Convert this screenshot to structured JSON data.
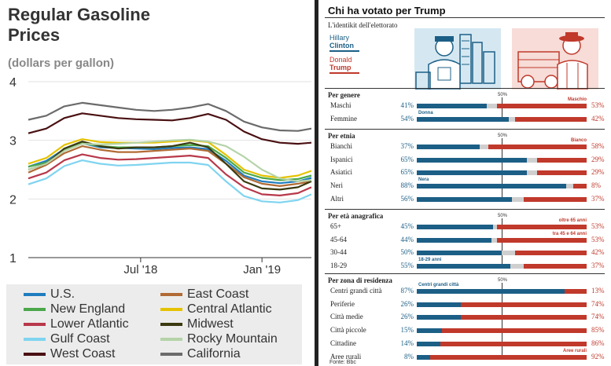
{
  "chart_data": [
    {
      "type": "line",
      "title": "Regular Gasoline Prices",
      "subtitle": "(dollars per gallon)",
      "ylim": [
        1,
        4
      ],
      "yticks": [
        "1",
        "2",
        "3",
        "4"
      ],
      "xticks": [
        "Jul '18",
        "Jan '19"
      ],
      "xticks_at": [
        25,
        52
      ],
      "x_range": [
        0,
        63
      ],
      "x": [
        0,
        4,
        8,
        12,
        16,
        20,
        24,
        28,
        32,
        36,
        40,
        44,
        48,
        52,
        56,
        60,
        63
      ],
      "series": [
        {
          "name": "U.S.",
          "color": "#1f7dbf",
          "values": [
            2.55,
            2.65,
            2.85,
            2.95,
            2.88,
            2.87,
            2.86,
            2.85,
            2.87,
            2.88,
            2.85,
            2.65,
            2.4,
            2.3,
            2.27,
            2.3,
            2.36
          ]
        },
        {
          "name": "East Coast",
          "color": "#b26b34",
          "values": [
            2.45,
            2.58,
            2.78,
            2.9,
            2.84,
            2.8,
            2.8,
            2.82,
            2.84,
            2.86,
            2.82,
            2.6,
            2.37,
            2.26,
            2.22,
            2.26,
            2.3
          ]
        },
        {
          "name": "New England",
          "color": "#4aa84a",
          "values": [
            2.55,
            2.62,
            2.84,
            2.95,
            2.9,
            2.88,
            2.88,
            2.88,
            2.9,
            2.92,
            2.9,
            2.7,
            2.45,
            2.36,
            2.32,
            2.34,
            2.4
          ]
        },
        {
          "name": "Central Atlantic",
          "color": "#e5c200",
          "values": [
            2.6,
            2.7,
            2.92,
            3.02,
            2.97,
            2.96,
            2.96,
            2.96,
            2.98,
            3.0,
            2.97,
            2.75,
            2.5,
            2.4,
            2.36,
            2.4,
            2.48
          ]
        },
        {
          "name": "Lower Atlantic",
          "color": "#b8384a",
          "values": [
            2.35,
            2.45,
            2.66,
            2.76,
            2.7,
            2.67,
            2.68,
            2.7,
            2.72,
            2.74,
            2.7,
            2.42,
            2.2,
            2.08,
            2.06,
            2.1,
            2.2
          ]
        },
        {
          "name": "Midwest",
          "color": "#3b3a10",
          "values": [
            2.5,
            2.6,
            2.86,
            2.98,
            2.9,
            2.86,
            2.88,
            2.88,
            2.9,
            2.96,
            2.88,
            2.6,
            2.3,
            2.18,
            2.16,
            2.2,
            2.3
          ]
        },
        {
          "name": "Gulf Coast",
          "color": "#7fd4f0",
          "values": [
            2.25,
            2.35,
            2.56,
            2.66,
            2.6,
            2.57,
            2.58,
            2.6,
            2.62,
            2.62,
            2.58,
            2.3,
            2.05,
            1.96,
            1.94,
            1.98,
            2.08
          ]
        },
        {
          "name": "Rocky Mountain",
          "color": "#b5d3a8",
          "values": [
            2.5,
            2.6,
            2.82,
            2.94,
            2.93,
            2.94,
            2.96,
            2.98,
            3.0,
            3.01,
            2.98,
            2.9,
            2.72,
            2.5,
            2.35,
            2.3,
            2.32
          ]
        },
        {
          "name": "West Coast",
          "color": "#4a1012",
          "values": [
            3.12,
            3.2,
            3.38,
            3.46,
            3.42,
            3.38,
            3.36,
            3.35,
            3.34,
            3.38,
            3.45,
            3.35,
            3.15,
            3.02,
            2.96,
            2.94,
            2.96
          ]
        },
        {
          "name": "California",
          "color": "#6b6b6b",
          "values": [
            3.35,
            3.42,
            3.58,
            3.64,
            3.6,
            3.56,
            3.52,
            3.5,
            3.52,
            3.56,
            3.62,
            3.5,
            3.32,
            3.22,
            3.17,
            3.16,
            3.2
          ]
        }
      ]
    },
    {
      "type": "bar",
      "title": "Chi ha votato per Trump",
      "subtitle": "L'identikit dell'elettorato",
      "legend": {
        "clinton_label_1": "Hillary",
        "clinton_label_2": "Clinton",
        "trump_label_1": "Donald",
        "trump_label_2": "Trump",
        "clinton_color": "#1c5f86",
        "trump_color": "#c0392b",
        "other_color": "#cfcfcf"
      },
      "midline_label": "50%",
      "sections": [
        {
          "title": "Per genere",
          "rows": [
            {
              "label": "Maschi",
              "clinton": 41,
              "trump": 53,
              "annotation": "Maschio"
            },
            {
              "label": "Femmine",
              "clinton": 54,
              "trump": 42,
              "annotation": "Donna"
            }
          ]
        },
        {
          "title": "Per etnia",
          "rows": [
            {
              "label": "Bianchi",
              "clinton": 37,
              "trump": 58,
              "annotation": "Bianco"
            },
            {
              "label": "Ispanici",
              "clinton": 65,
              "trump": 29,
              "annotation": ""
            },
            {
              "label": "Asiatici",
              "clinton": 65,
              "trump": 29,
              "annotation": ""
            },
            {
              "label": "Neri",
              "clinton": 88,
              "trump": 8,
              "annotation": "Nera"
            },
            {
              "label": "Altri",
              "clinton": 56,
              "trump": 37,
              "annotation": ""
            }
          ]
        },
        {
          "title": "Per età anagrafica",
          "rows": [
            {
              "label": "65+",
              "clinton": 45,
              "trump": 53,
              "annotation": "oltre 65 anni"
            },
            {
              "label": "45-64",
              "clinton": 44,
              "trump": 53,
              "annotation": "tra 45 e 64 anni"
            },
            {
              "label": "30-44",
              "clinton": 50,
              "trump": 42,
              "annotation": ""
            },
            {
              "label": "18-29",
              "clinton": 55,
              "trump": 37,
              "annotation": "18-29 anni"
            }
          ]
        },
        {
          "title": "Per zona di residenza",
          "rows": [
            {
              "label": "Centri grandi città",
              "clinton": 87,
              "trump": 13,
              "annotation": "Centri grandi città"
            },
            {
              "label": "Periferie",
              "clinton": 26,
              "trump": 74,
              "annotation": ""
            },
            {
              "label": "Città medie",
              "clinton": 26,
              "trump": 74,
              "annotation": ""
            },
            {
              "label": "Città piccole",
              "clinton": 15,
              "trump": 85,
              "annotation": ""
            },
            {
              "label": "Cittadine",
              "clinton": 14,
              "trump": 86,
              "annotation": ""
            },
            {
              "label": "Aree rurali",
              "clinton": 8,
              "trump": 92,
              "annotation": "Aree rurali"
            }
          ]
        }
      ],
      "source": "Fonte: Bbc"
    }
  ]
}
